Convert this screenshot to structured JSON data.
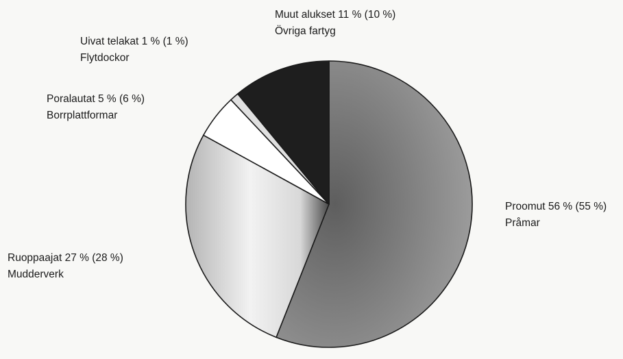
{
  "chart_data": {
    "type": "pie",
    "start": "12 o'clock",
    "direction": "clockwise",
    "slices": [
      {
        "key": "proomut",
        "label_fi": "Proomut 56 % (55 %)",
        "label_sv": "Pråmar",
        "value": 56,
        "previous": 55,
        "fill": "#8a8a8a"
      },
      {
        "key": "ruoppaajat",
        "label_fi": "Ruoppaajat 27 % (28 %)",
        "label_sv": "Mudderverk",
        "value": 27,
        "previous": 28,
        "fill": "#c8c8c8"
      },
      {
        "key": "poralautat",
        "label_fi": "Poralautat 5 % (6 %)",
        "label_sv": "Borrplattformar",
        "value": 5,
        "previous": 6,
        "fill": "#ffffff"
      },
      {
        "key": "uivat",
        "label_fi": "Uivat telakat 1 % (1 %)",
        "label_sv": "Flytdockor",
        "value": 1,
        "previous": 1,
        "fill": "#e0e0e0"
      },
      {
        "key": "muut",
        "label_fi": "Muut alukset 11 % (10 %)",
        "label_sv": "Övriga fartyg",
        "value": 11,
        "previous": 10,
        "fill": "#1e1e1e"
      }
    ]
  }
}
